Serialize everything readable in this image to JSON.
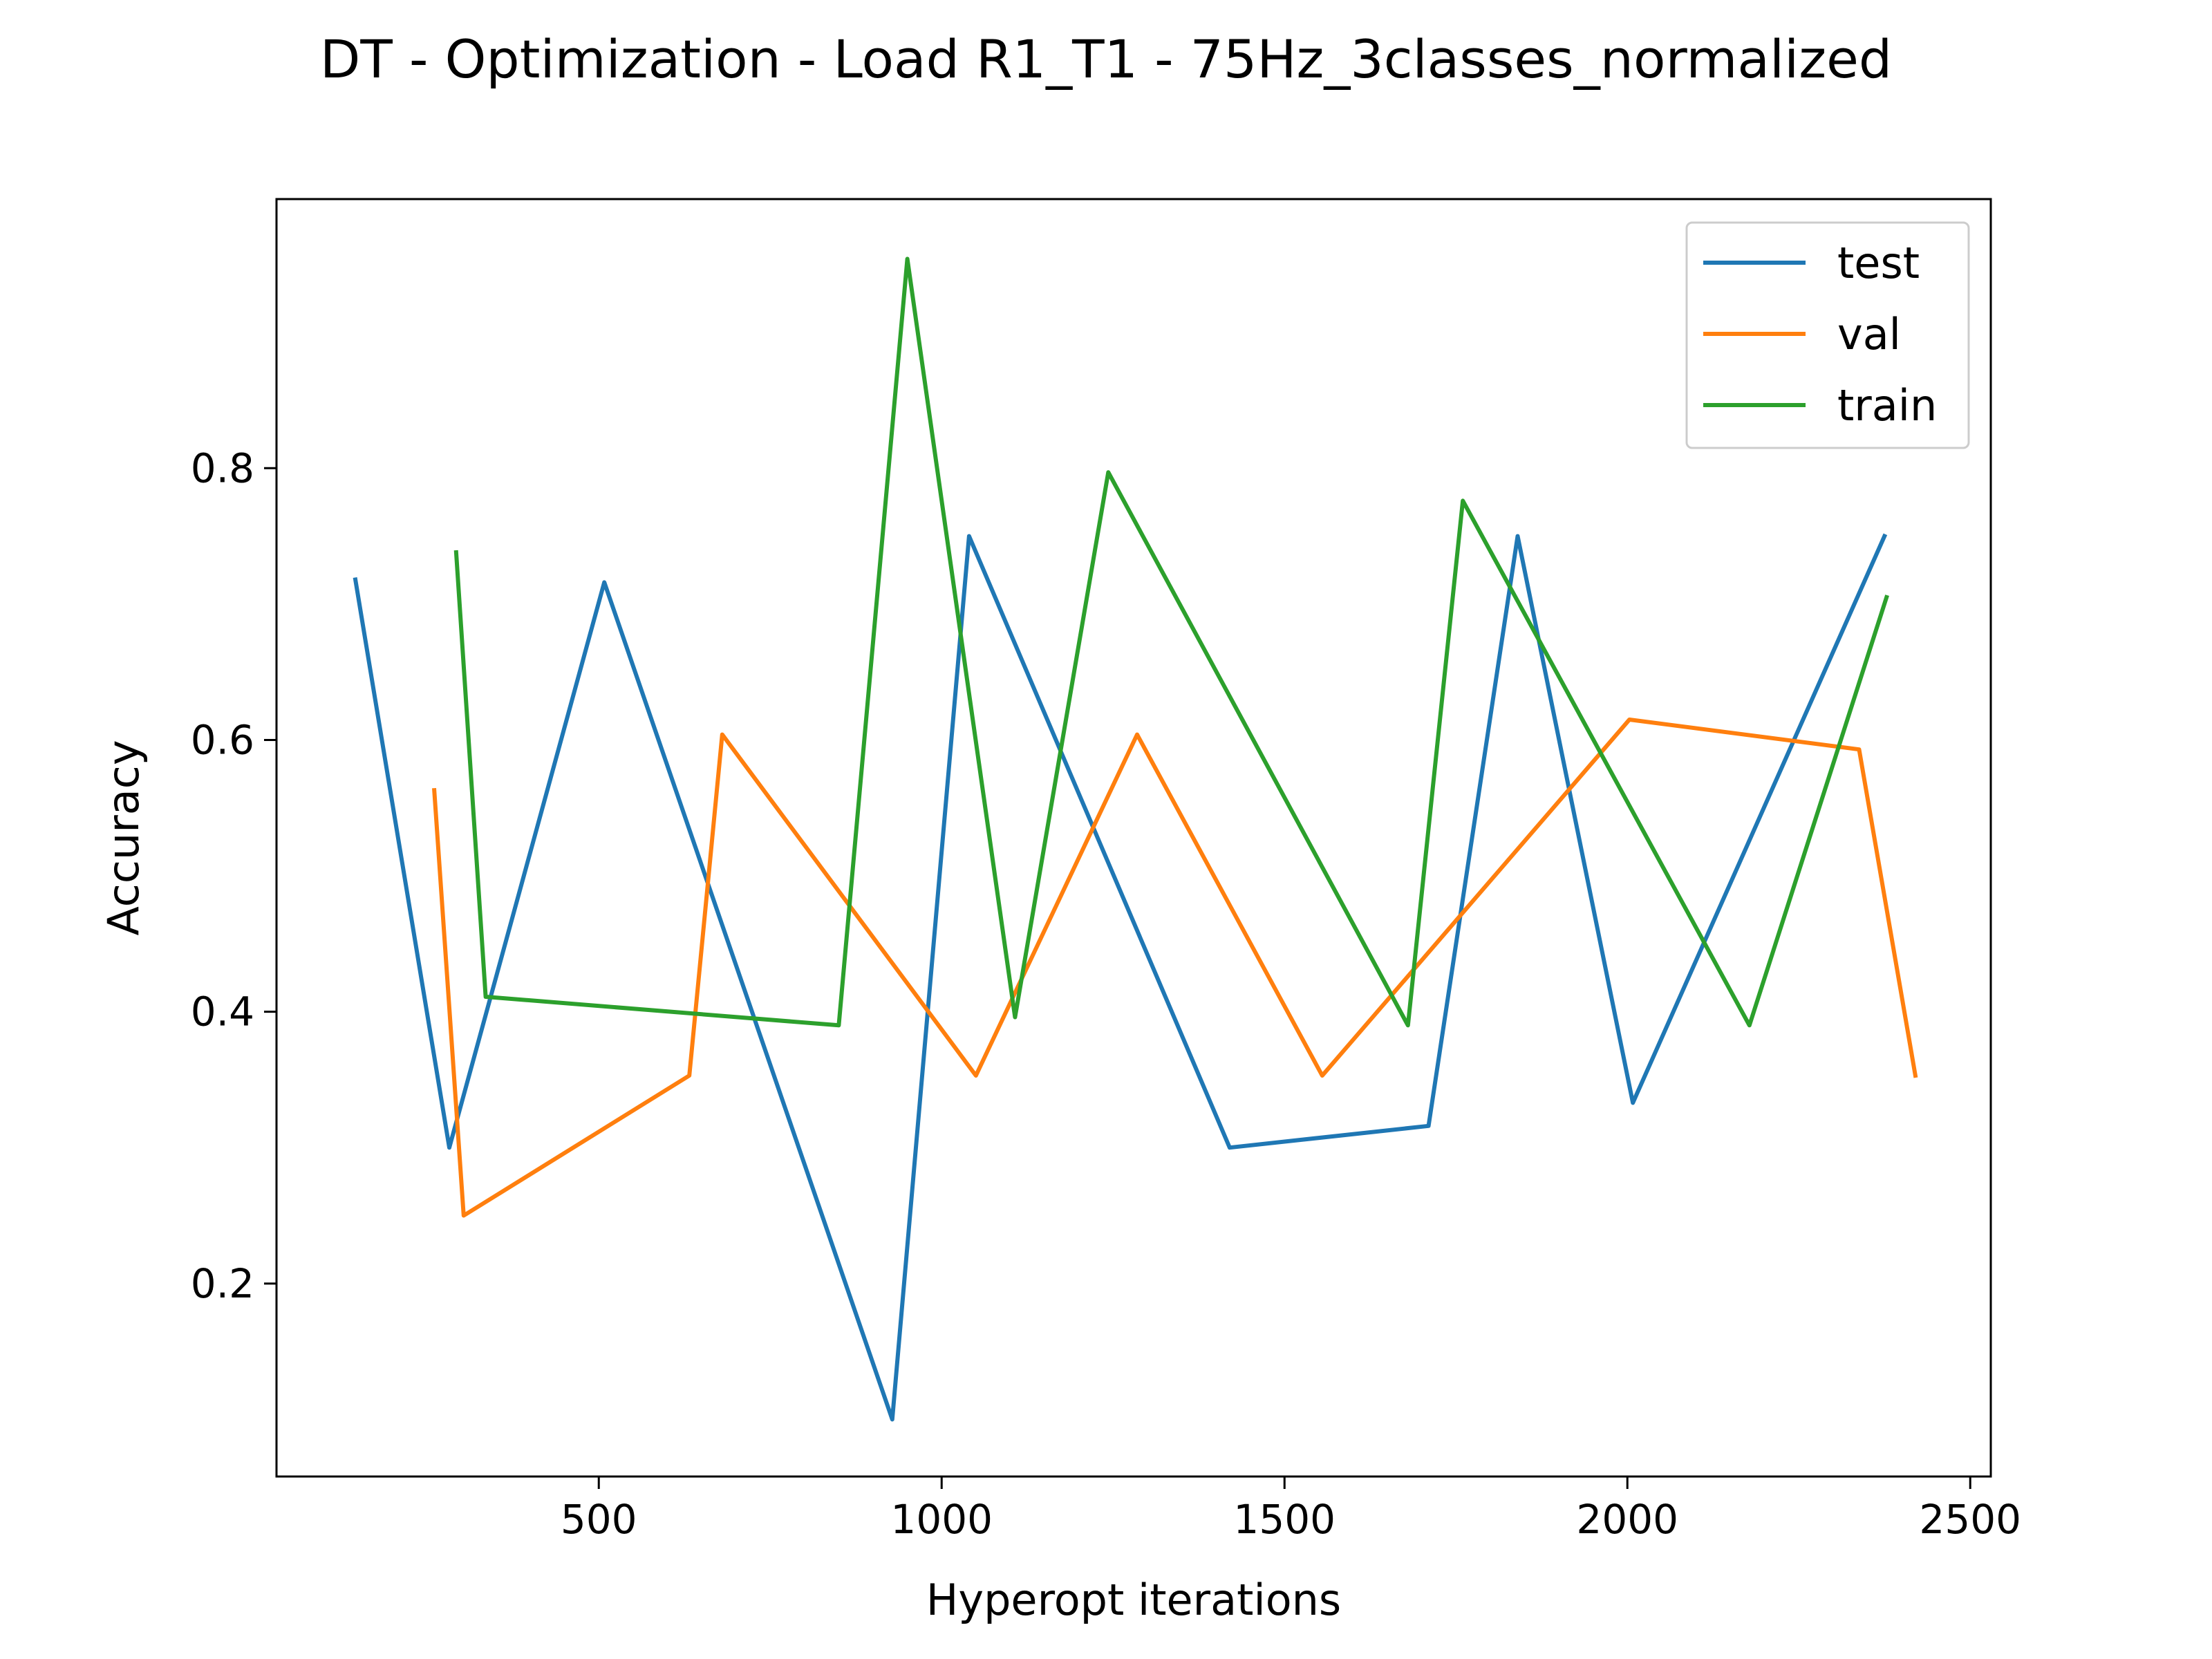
{
  "chart_data": {
    "type": "line",
    "title": "DT - Optimization - Load R1_T1 - 75Hz_3classes_normalized",
    "xlabel": "Hyperopt iterations",
    "ylabel": "Accuracy",
    "xlim": [
      30,
      2530
    ],
    "ylim": [
      0.058,
      0.998
    ],
    "xticks": [
      500,
      1000,
      1500,
      2000,
      2500
    ],
    "yticks": [
      0.2,
      0.4,
      0.6,
      0.8
    ],
    "xtick_labels": [
      "500",
      "1000",
      "1500",
      "2000",
      "2500"
    ],
    "ytick_labels": [
      "0.2",
      "0.4",
      "0.6",
      "0.8"
    ],
    "grid": false,
    "legend_position": "top-right",
    "series": [
      {
        "name": "test",
        "color": "#1f77b4",
        "x": [
          145,
          282,
          508,
          928,
          1040,
          1420,
          1710,
          1840,
          2008,
          2375
        ],
        "y": [
          0.718,
          0.3,
          0.716,
          0.1,
          0.75,
          0.3,
          0.316,
          0.75,
          0.333,
          0.75
        ]
      },
      {
        "name": "val",
        "color": "#ff7f0e",
        "x": [
          260,
          303,
          632,
          680,
          1050,
          1285,
          1555,
          2003,
          2338,
          2420
        ],
        "y": [
          0.563,
          0.25,
          0.353,
          0.604,
          0.353,
          0.604,
          0.353,
          0.615,
          0.593,
          0.353
        ]
      },
      {
        "name": "train",
        "color": "#2ca02c",
        "x": [
          292,
          335,
          850,
          950,
          1107,
          1243,
          1680,
          1760,
          2178,
          2378
        ],
        "y": [
          0.738,
          0.411,
          0.39,
          0.954,
          0.396,
          0.797,
          0.39,
          0.776,
          0.39,
          0.705
        ]
      }
    ]
  }
}
